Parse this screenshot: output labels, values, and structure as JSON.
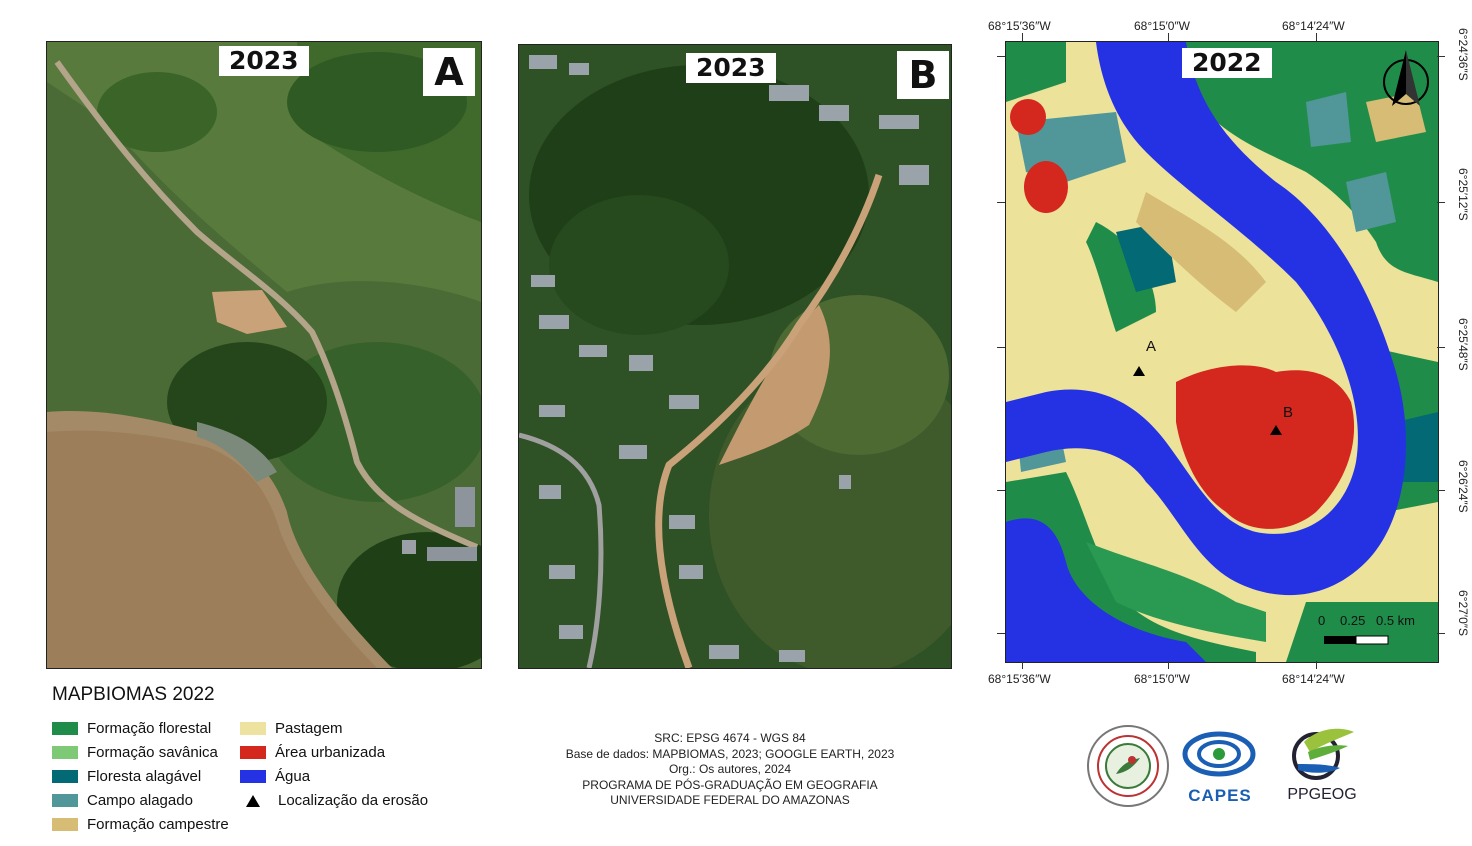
{
  "panels": {
    "a": {
      "year": "2023",
      "letter": "A"
    },
    "b": {
      "year": "2023",
      "letter": "B"
    },
    "c": {
      "year": "2022"
    }
  },
  "map_labels": {
    "erosion_a": "A",
    "erosion_b": "B"
  },
  "coordinates": {
    "top": [
      "68°15′36″W",
      "68°15′0″W",
      "68°14′24″W"
    ],
    "bottom": [
      "68°15′36″W",
      "68°15′0″W",
      "68°14′24″W"
    ],
    "right": [
      "6°24′36″S",
      "6°25′12″S",
      "6°25′48″S",
      "6°26′24″S",
      "6°27′0″S"
    ]
  },
  "scalebar": {
    "labels": [
      "0",
      "0.25",
      "0.5 km"
    ]
  },
  "legend": {
    "title": "MAPBIOMAS 2022",
    "items": [
      {
        "label": "Formação florestal",
        "color": "#1f8d49"
      },
      {
        "label": "Formação savânica",
        "color": "#7dc975"
      },
      {
        "label": "Floresta alagável",
        "color": "#026975"
      },
      {
        "label": "Campo alagado",
        "color": "#519799"
      },
      {
        "label": "Formação campestre",
        "color": "#d6bc74"
      },
      {
        "label": "Pastagem",
        "color": "#ede2a0"
      },
      {
        "label": "Área urbanizada",
        "color": "#d4271e"
      },
      {
        "label": "Água",
        "color": "#2532e4"
      },
      {
        "label": "Localização da erosão",
        "color": "#000000"
      }
    ]
  },
  "credits": [
    "SRC: EPSG 4674 - WGS 84",
    "Base de dados: MAPBIOMAS, 2023; GOOGLE EARTH, 2023",
    "Org.: Os autores, 2024",
    "PROGRAMA DE PÓS-GRADUAÇÃO EM GEOGRAFIA",
    "UNIVERSIDADE FEDERAL DO AMAZONAS"
  ],
  "logos": {
    "ufam": "UNIVERSIDADE FEDERAL DO AMAZONAS",
    "capes": "CAPES",
    "ppgeog": "PPGEOG"
  }
}
